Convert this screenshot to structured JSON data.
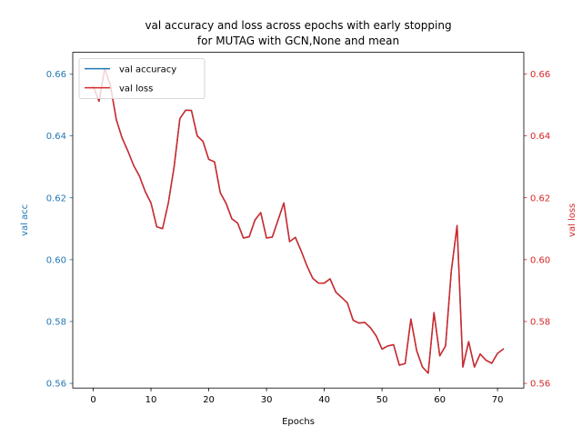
{
  "chart_data": {
    "type": "line",
    "title_line1": "val accuracy and loss across epochs with early stopping",
    "title_line2": "for MUTAG with GCN,None  and mean",
    "xlabel": "Epochs",
    "ylabel_left": "val acc",
    "ylabel_right": "val loss",
    "xlim": [
      -3.55,
      74.55
    ],
    "ylim": [
      0.5585,
      0.667
    ],
    "x_ticks": [
      0,
      10,
      20,
      30,
      40,
      50,
      60,
      70
    ],
    "y_ticks": [
      0.56,
      0.58,
      0.6,
      0.62,
      0.64,
      0.66
    ],
    "y_tick_labels": [
      "0.56",
      "0.58",
      "0.60",
      "0.62",
      "0.64",
      "0.66"
    ],
    "legend_position": "upper-left",
    "left_axis_color": "#1f77b4",
    "right_axis_color": "#d62728",
    "series": [
      {
        "name": "val accuracy",
        "axis": "left",
        "color": "#1f77b4",
        "x": [
          0,
          1,
          2,
          3,
          4,
          5,
          6,
          7,
          8,
          9,
          10,
          11,
          12,
          13,
          14,
          15,
          16,
          17,
          18,
          19,
          20,
          21,
          22,
          23,
          24,
          25,
          26,
          27,
          28,
          29,
          30,
          31,
          32,
          33,
          34,
          35,
          36,
          37,
          38,
          39,
          40,
          41,
          42,
          43,
          44,
          45,
          46,
          47,
          48,
          49,
          50,
          51,
          52,
          53,
          54,
          55,
          56,
          57,
          58,
          59,
          60,
          61,
          62,
          63,
          64,
          65,
          66,
          67,
          68,
          69,
          70,
          71
        ],
        "values": [
          0.656,
          0.6512,
          0.6618,
          0.656,
          0.6452,
          0.6393,
          0.6351,
          0.6304,
          0.627,
          0.622,
          0.6183,
          0.6106,
          0.61,
          0.6183,
          0.63,
          0.6456,
          0.6483,
          0.6482,
          0.64,
          0.6382,
          0.6324,
          0.6316,
          0.6216,
          0.6182,
          0.6132,
          0.6118,
          0.607,
          0.6074,
          0.6128,
          0.6152,
          0.607,
          0.6073,
          0.6128,
          0.6183,
          0.6058,
          0.6072,
          0.6028,
          0.598,
          0.594,
          0.5924,
          0.5924,
          0.5938,
          0.5895,
          0.5878,
          0.586,
          0.5804,
          0.5795,
          0.5797,
          0.578,
          0.5753,
          0.5711,
          0.5721,
          0.5725,
          0.5659,
          0.5664,
          0.5808,
          0.5706,
          0.5653,
          0.5633,
          0.5829,
          0.5689,
          0.5721,
          0.5964,
          0.611,
          0.5653,
          0.5735,
          0.5653,
          0.5695,
          0.5675,
          0.5665,
          0.5697,
          0.5711
        ]
      },
      {
        "name": "val loss",
        "axis": "right",
        "color": "#d62728",
        "x": [
          0,
          1,
          2,
          3,
          4,
          5,
          6,
          7,
          8,
          9,
          10,
          11,
          12,
          13,
          14,
          15,
          16,
          17,
          18,
          19,
          20,
          21,
          22,
          23,
          24,
          25,
          26,
          27,
          28,
          29,
          30,
          31,
          32,
          33,
          34,
          35,
          36,
          37,
          38,
          39,
          40,
          41,
          42,
          43,
          44,
          45,
          46,
          47,
          48,
          49,
          50,
          51,
          52,
          53,
          54,
          55,
          56,
          57,
          58,
          59,
          60,
          61,
          62,
          63,
          64,
          65,
          66,
          67,
          68,
          69,
          70,
          71
        ],
        "values": [
          0.656,
          0.6512,
          0.6618,
          0.656,
          0.6452,
          0.6393,
          0.6351,
          0.6304,
          0.627,
          0.622,
          0.6183,
          0.6106,
          0.61,
          0.6183,
          0.63,
          0.6456,
          0.6483,
          0.6482,
          0.64,
          0.6382,
          0.6324,
          0.6316,
          0.6216,
          0.6182,
          0.6132,
          0.6118,
          0.607,
          0.6074,
          0.6128,
          0.6152,
          0.607,
          0.6073,
          0.6128,
          0.6183,
          0.6058,
          0.6072,
          0.6028,
          0.598,
          0.594,
          0.5924,
          0.5924,
          0.5938,
          0.5895,
          0.5878,
          0.586,
          0.5804,
          0.5795,
          0.5797,
          0.578,
          0.5753,
          0.5711,
          0.5721,
          0.5725,
          0.5659,
          0.5664,
          0.5808,
          0.5706,
          0.5653,
          0.5633,
          0.5829,
          0.5689,
          0.5721,
          0.5964,
          0.611,
          0.5653,
          0.5735,
          0.5653,
          0.5695,
          0.5675,
          0.5665,
          0.5697,
          0.5711
        ]
      }
    ]
  }
}
